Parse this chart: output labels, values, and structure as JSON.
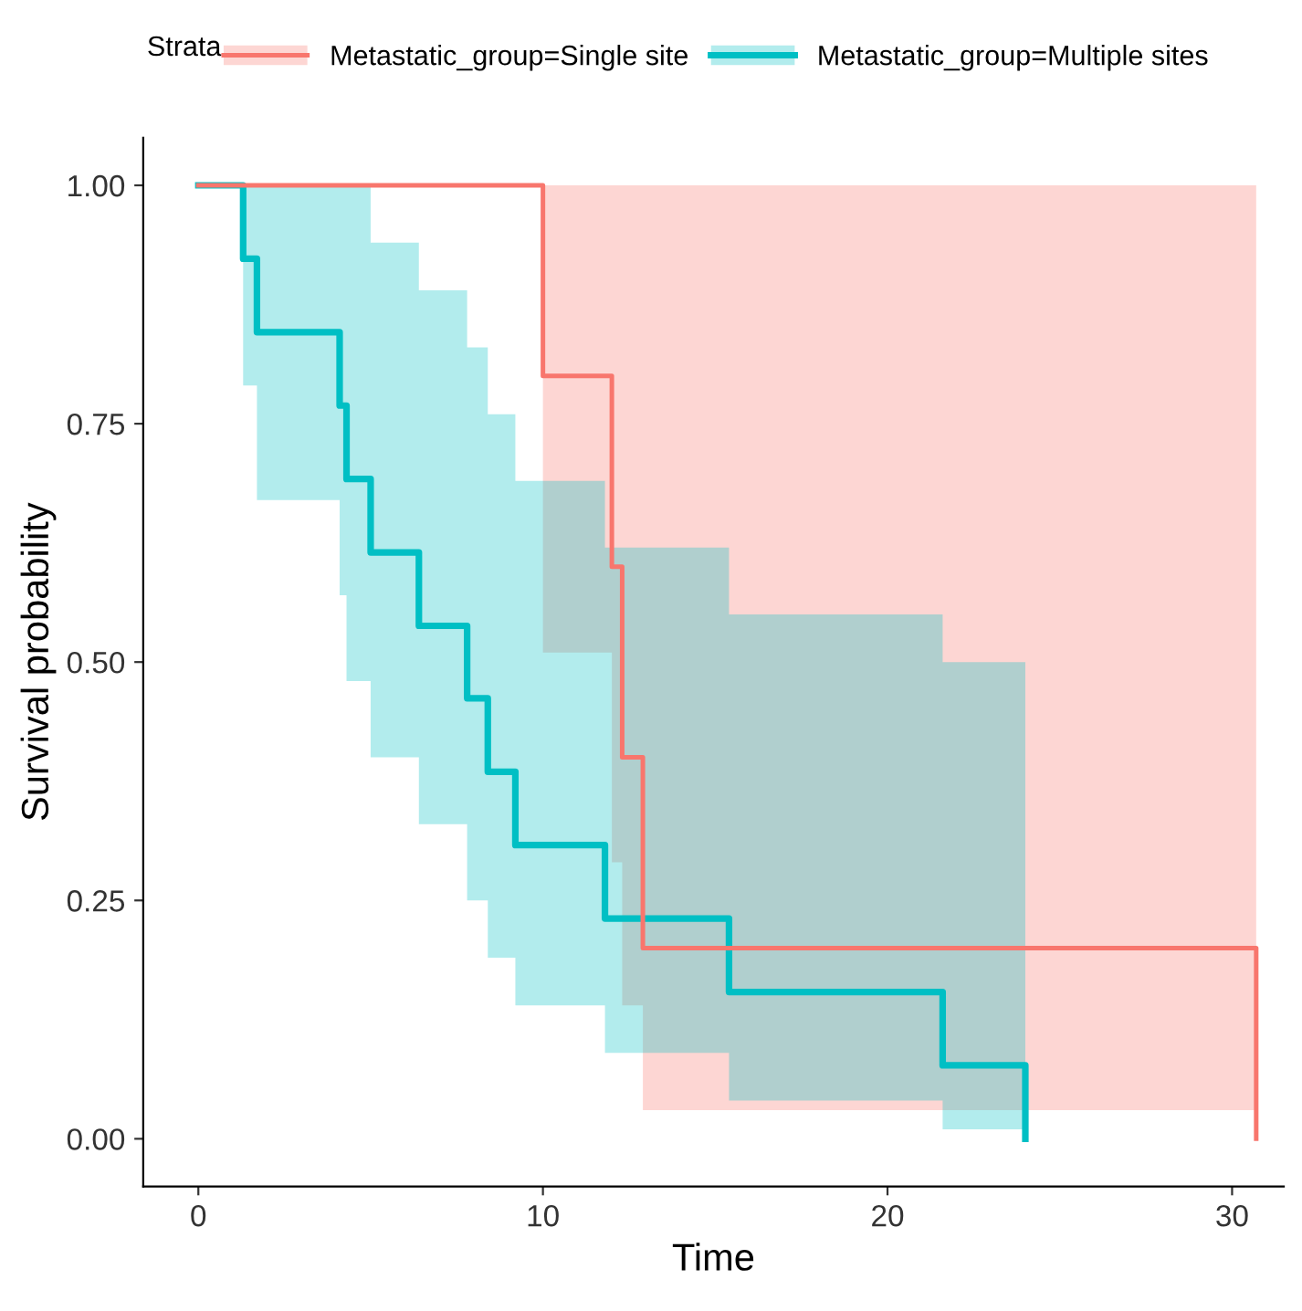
{
  "chart_data": {
    "type": "step",
    "xlabel": "Time",
    "ylabel": "Survival probability",
    "legend_title": "Strata",
    "legend": "top",
    "grid": false,
    "line_style": "solid",
    "marker": "none",
    "xlim": [
      -1.6,
      31.5
    ],
    "ylim": [
      -0.05,
      1.05
    ],
    "xticks": [
      0,
      10,
      20,
      30
    ],
    "yticks": [
      {
        "value": 0,
        "label": "0.00"
      },
      {
        "value": 0.25,
        "label": "0.25"
      },
      {
        "value": 0.5,
        "label": "0.50"
      },
      {
        "value": 0.75,
        "label": "0.75"
      },
      {
        "value": 1,
        "label": "1.00"
      }
    ],
    "series": [
      {
        "name": "Metastatic_group=Single site",
        "color": "#f8766d",
        "x": [
          0,
          10,
          12,
          12.3,
          12.9,
          30.7
        ],
        "values": [
          1,
          0.8,
          0.6,
          0.4,
          0.2,
          0
        ],
        "lower": [
          null,
          0.51,
          0.29,
          0.14,
          0.03,
          0.03
        ],
        "upper": [
          null,
          1,
          1,
          1,
          1,
          1
        ]
      },
      {
        "name": "Metastatic_group=Multiple sites",
        "color": "#00bfc4",
        "x": [
          0,
          1.3,
          1.7,
          4.1,
          4.3,
          5,
          6.4,
          7.8,
          8.4,
          9.2,
          11.8,
          15.4,
          21.6,
          24
        ],
        "values": [
          1,
          0.923,
          0.846,
          0.769,
          0.692,
          0.615,
          0.538,
          0.462,
          0.385,
          0.308,
          0.231,
          0.154,
          0.077,
          0
        ],
        "lower": [
          null,
          0.79,
          0.67,
          0.57,
          0.48,
          0.4,
          0.33,
          0.25,
          0.19,
          0.14,
          0.09,
          0.04,
          0.01,
          0.01
        ],
        "upper": [
          null,
          1,
          1,
          1,
          1,
          0.94,
          0.89,
          0.83,
          0.76,
          0.69,
          0.62,
          0.55,
          0.5,
          0.5
        ]
      }
    ]
  }
}
